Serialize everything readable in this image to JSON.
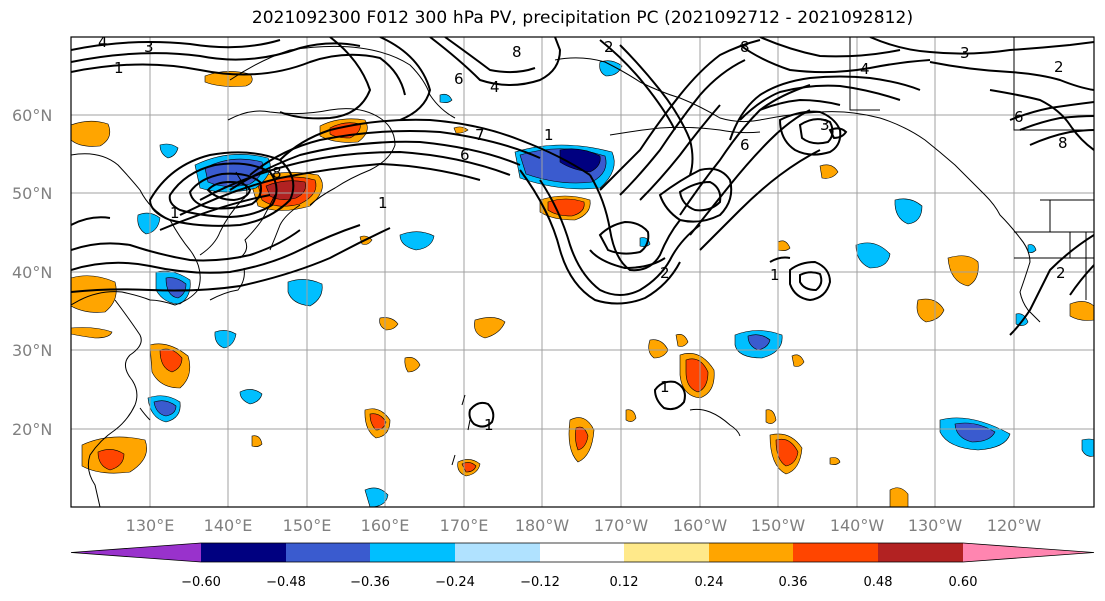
{
  "title": "2021092300 F012 300 hPa PV, precipitation PC (2021092712 - 2021092812)",
  "lat_labels": [
    "60°N",
    "50°N",
    "40°N",
    "30°N",
    "20°N"
  ],
  "lon_labels": [
    "130°E",
    "140°E",
    "150°E",
    "160°E",
    "170°E",
    "180°W",
    "170°W",
    "160°W",
    "150°W",
    "140°W",
    "130°W",
    "120°W"
  ],
  "colorbar": {
    "ticks": [
      "−0.60",
      "−0.48",
      "−0.36",
      "−0.24",
      "−0.12",
      "0.12",
      "0.24",
      "0.36",
      "0.48",
      "0.60"
    ],
    "colors": [
      "#9932cc",
      "#000080",
      "#3a5bcf",
      "#00bfff",
      "#b0e2ff",
      "#ffffff",
      "#ffe98a",
      "#ffa500",
      "#ff4500",
      "#b22222",
      "#ff85b0"
    ]
  },
  "contour_labels": [
    "1",
    "2",
    "3",
    "4",
    "5",
    "6",
    "7",
    "8"
  ],
  "colors": {
    "contour": "#000000",
    "coast": "#000000",
    "grid": "#a0a0a0",
    "axis_text": "#808080"
  }
}
